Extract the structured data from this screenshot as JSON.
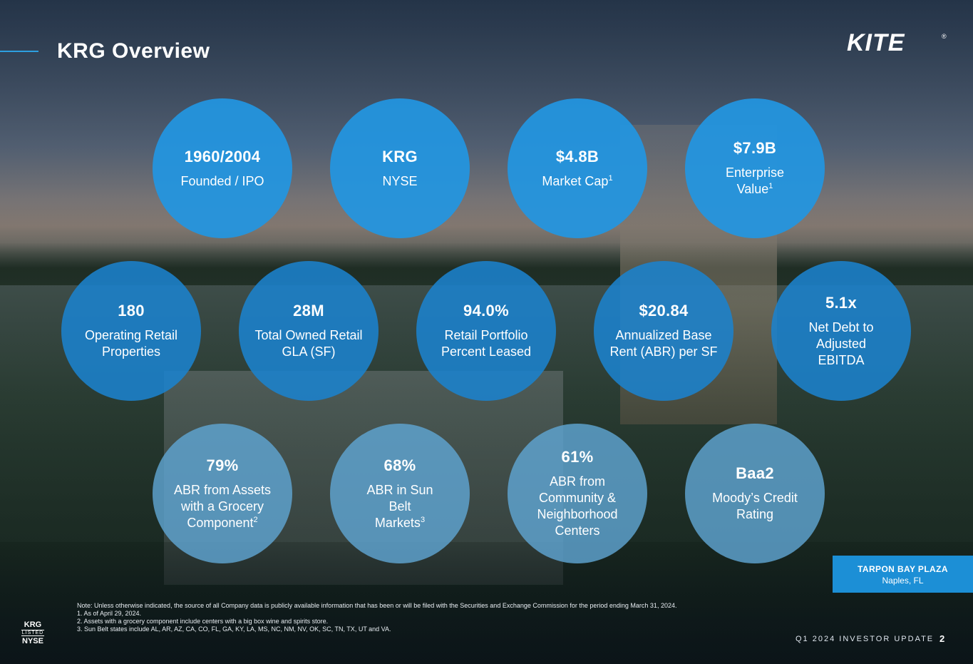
{
  "header": {
    "title": "KRG Overview"
  },
  "logo": {
    "text": "KITE",
    "mark": "®"
  },
  "stats": [
    {
      "value": "1960/2004",
      "label": "Founded / IPO",
      "sup": ""
    },
    {
      "value": "KRG",
      "label": "NYSE",
      "sup": ""
    },
    {
      "value": "$4.8B",
      "label": "Market Cap",
      "sup": "1"
    },
    {
      "value": "$7.9B",
      "label": "Enterprise Value",
      "sup": "1"
    },
    {
      "value": "180",
      "label": "Operating Retail Properties",
      "sup": ""
    },
    {
      "value": "28M",
      "label": "Total Owned Retail GLA (SF)",
      "sup": ""
    },
    {
      "value": "94.0%",
      "label": "Retail Portfolio Percent Leased",
      "sup": ""
    },
    {
      "value": "$20.84",
      "label": "Annualized Base Rent (ABR) per SF",
      "sup": ""
    },
    {
      "value": "5.1x",
      "label": "Net Debt to Adjusted EBITDA",
      "sup": ""
    },
    {
      "value": "79%",
      "label": "ABR from Assets with a Grocery Component",
      "sup": "2"
    },
    {
      "value": "68%",
      "label": "ABR in Sun Belt Markets",
      "sup": "3"
    },
    {
      "value": "61%",
      "label": "ABR from Community & Neighborhood Centers",
      "sup": ""
    },
    {
      "value": "Baa2",
      "label": "Moody’s Credit Rating",
      "sup": ""
    }
  ],
  "photo_caption": {
    "name": "TARPON BAY PLAZA",
    "location": "Naples, FL"
  },
  "notes": {
    "main": "Note: Unless otherwise indicated, the source of all Company data is publicly available information that has been or will be filed with the Securities and Exchange Commission for the period ending March 31, 2024.",
    "items": [
      "1. As of April 29, 2024.",
      "2. Assets with a grocery component include centers with a big box wine and spirits store.",
      "3. Sun Belt states include AL, AR, AZ, CA, CO, FL, GA, KY, LA, MS, NC, NM, NV, OK, SC, TN, TX, UT and VA."
    ]
  },
  "listing": {
    "ticker": "KRG",
    "listed": "LISTED",
    "exchange": "NYSE"
  },
  "footer": {
    "text": "Q1 2024 INVESTOR UPDATE",
    "page": "2"
  }
}
